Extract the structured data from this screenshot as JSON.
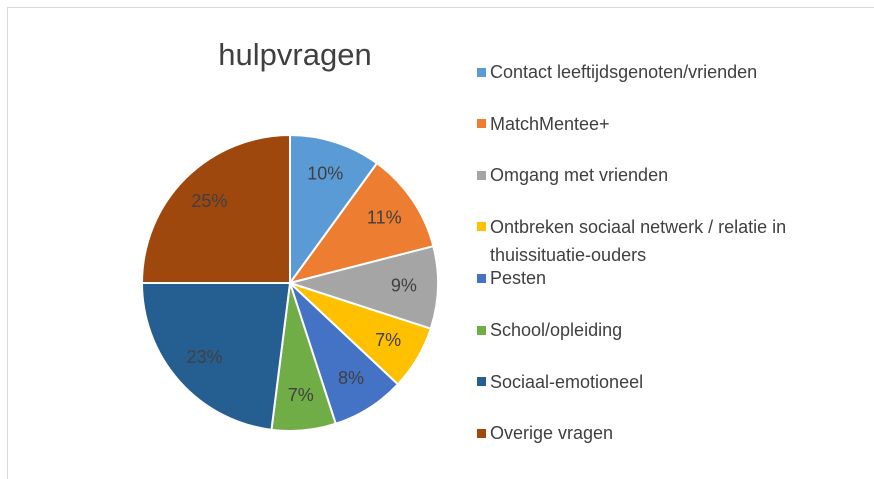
{
  "chart_data": {
    "type": "pie",
    "title": "hulpvragen",
    "categories": [
      "Contact leeftijdsgenoten/vrienden",
      "MatchMentee+",
      "Omgang met vrienden",
      "Ontbreken sociaal netwerk / relatie in thuissituatie-ouders",
      "Pesten",
      "School/opleiding",
      "Sociaal-emotioneel",
      "Overige vragen"
    ],
    "values": [
      10,
      11,
      9,
      7,
      8,
      7,
      23,
      25
    ],
    "value_labels": [
      "10%",
      "11%",
      "9%",
      "7%",
      "8%",
      "7%",
      "23%",
      "25%"
    ],
    "colors": [
      "#5b9bd5",
      "#ed7d31",
      "#a5a5a5",
      "#ffc000",
      "#4472c4",
      "#70ad47",
      "#255e91",
      "#9e480e"
    ],
    "legend": "right"
  }
}
